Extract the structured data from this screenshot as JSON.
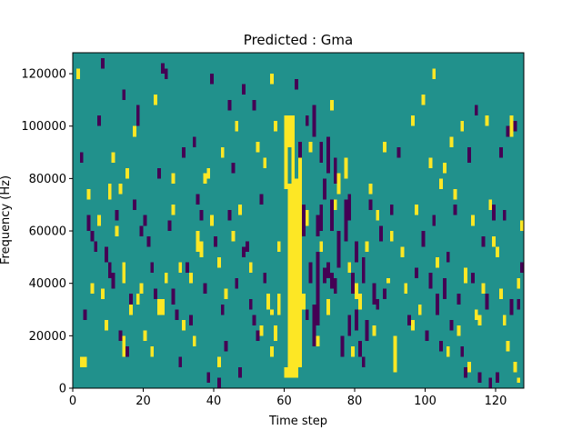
{
  "chart_data": {
    "type": "heatmap",
    "title": "Predicted : Gma",
    "xlabel": "Time step",
    "ylabel": "Frequency (Hz)",
    "xlim": [
      0,
      128
    ],
    "ylim": [
      0,
      128000
    ],
    "x_ticks": [
      0,
      20,
      40,
      60,
      80,
      100,
      120
    ],
    "y_ticks": [
      0,
      20000,
      40000,
      60000,
      80000,
      100000,
      120000
    ],
    "n_time_steps": 128,
    "n_freq_bins": 128,
    "bin_height_hz": 1000,
    "grid": false,
    "legend": "none",
    "colors": {
      "background_value_0": "#21918c",
      "value_plus_1": "#fde725",
      "value_minus_1": "#440154"
    },
    "cells_note": "value 0 everywhere except listed runs",
    "runs_plus_1": [
      [
        60,
        4000,
        8000
      ],
      [
        61,
        4000,
        78000
      ],
      [
        62,
        4000,
        104000
      ],
      [
        63,
        4000,
        80000
      ],
      [
        64,
        8000,
        88000
      ],
      [
        65,
        30000,
        36000
      ],
      [
        66,
        62000,
        68000
      ],
      [
        60,
        76000,
        104000
      ],
      [
        61,
        92000,
        104000
      ],
      [
        57,
        18000,
        24000
      ],
      [
        58,
        28000,
        36000
      ],
      [
        58,
        52000,
        56000
      ],
      [
        2,
        8000,
        12000
      ],
      [
        3,
        8000,
        12000
      ],
      [
        14,
        12000,
        20000
      ],
      [
        14,
        40000,
        48000
      ],
      [
        9,
        22000,
        26000
      ],
      [
        8,
        34000,
        38000
      ],
      [
        19,
        36000,
        40000
      ],
      [
        22,
        12000,
        16000
      ],
      [
        24,
        28000,
        34000
      ],
      [
        25,
        28000,
        34000
      ],
      [
        28,
        66000,
        70000
      ],
      [
        35,
        52000,
        60000
      ],
      [
        36,
        50000,
        56000
      ],
      [
        41,
        46000,
        50000
      ],
      [
        42,
        88000,
        92000
      ],
      [
        41,
        8000,
        12000
      ],
      [
        47,
        66000,
        70000
      ],
      [
        55,
        30000,
        34000
      ],
      [
        56,
        28000,
        30000
      ],
      [
        56,
        12000,
        16000
      ],
      [
        55,
        32000,
        36000
      ],
      [
        57,
        98000,
        102000
      ],
      [
        56,
        116000,
        120000
      ],
      [
        70,
        52000,
        56000
      ],
      [
        72,
        28000,
        34000
      ],
      [
        75,
        74000,
        82000
      ],
      [
        77,
        80000,
        88000
      ],
      [
        80,
        34000,
        40000
      ],
      [
        81,
        30000,
        36000
      ],
      [
        85,
        20000,
        24000
      ],
      [
        86,
        64000,
        68000
      ],
      [
        89,
        40000,
        42000
      ],
      [
        91,
        6000,
        20000
      ],
      [
        93,
        50000,
        54000
      ],
      [
        96,
        22000,
        26000
      ],
      [
        97,
        66000,
        70000
      ],
      [
        99,
        108000,
        112000
      ],
      [
        102,
        118000,
        122000
      ],
      [
        104,
        76000,
        80000
      ],
      [
        108,
        72000,
        76000
      ],
      [
        111,
        40000,
        46000
      ],
      [
        112,
        6000,
        10000
      ],
      [
        114,
        26000,
        30000
      ],
      [
        115,
        24000,
        28000
      ],
      [
        118,
        68000,
        72000
      ],
      [
        122,
        24000,
        28000
      ],
      [
        123,
        14000,
        18000
      ],
      [
        124,
        96000,
        104000
      ],
      [
        125,
        6000,
        10000
      ],
      [
        126,
        2000,
        4000
      ],
      [
        127,
        60000,
        64000
      ],
      [
        5,
        36000,
        40000
      ],
      [
        4,
        72000,
        76000
      ],
      [
        7,
        62000,
        66000
      ],
      [
        11,
        86000,
        90000
      ],
      [
        12,
        58000,
        62000
      ],
      [
        13,
        74000,
        78000
      ],
      [
        15,
        80000,
        84000
      ],
      [
        16,
        28000,
        32000
      ],
      [
        17,
        96000,
        100000
      ],
      [
        23,
        108000,
        112000
      ],
      [
        28,
        78000,
        82000
      ],
      [
        30,
        44000,
        48000
      ],
      [
        33,
        40000,
        44000
      ],
      [
        37,
        78000,
        82000
      ],
      [
        38,
        80000,
        84000
      ],
      [
        43,
        34000,
        38000
      ],
      [
        46,
        98000,
        102000
      ],
      [
        52,
        90000,
        94000
      ],
      [
        54,
        84000,
        88000
      ],
      [
        67,
        90000,
        94000
      ],
      [
        74,
        68000,
        72000
      ],
      [
        78,
        44000,
        48000
      ],
      [
        83,
        52000,
        56000
      ],
      [
        88,
        90000,
        94000
      ],
      [
        96,
        100000,
        104000
      ],
      [
        101,
        84000,
        88000
      ],
      [
        105,
        82000,
        86000
      ],
      [
        110,
        98000,
        102000
      ],
      [
        113,
        62000,
        66000
      ],
      [
        117,
        100000,
        104000
      ],
      [
        119,
        54000,
        58000
      ],
      [
        121,
        34000,
        38000
      ],
      [
        1,
        118000,
        122000
      ],
      [
        10,
        72000,
        78000
      ],
      [
        18,
        32000,
        36000
      ],
      [
        20,
        18000,
        22000
      ],
      [
        26,
        40000,
        44000
      ],
      [
        31,
        22000,
        26000
      ],
      [
        34,
        16000,
        20000
      ],
      [
        39,
        62000,
        66000
      ],
      [
        45,
        56000,
        60000
      ],
      [
        50,
        44000,
        48000
      ],
      [
        53,
        20000,
        24000
      ],
      [
        69,
        16000,
        20000
      ],
      [
        73,
        106000,
        110000
      ],
      [
        79,
        12000,
        16000
      ],
      [
        84,
        74000,
        78000
      ],
      [
        90,
        56000,
        60000
      ],
      [
        94,
        36000,
        40000
      ],
      [
        98,
        28000,
        32000
      ],
      [
        103,
        46000,
        50000
      ],
      [
        106,
        12000,
        16000
      ],
      [
        107,
        92000,
        96000
      ],
      [
        109,
        20000,
        24000
      ],
      [
        116,
        36000,
        40000
      ],
      [
        120,
        50000,
        54000
      ],
      [
        126,
        38000,
        42000
      ]
    ],
    "runs_minus_1": [
      [
        67,
        40000,
        48000
      ],
      [
        68,
        16000,
        32000
      ],
      [
        69,
        24000,
        52000
      ],
      [
        70,
        60000,
        70000
      ],
      [
        71,
        40000,
        46000
      ],
      [
        72,
        82000,
        96000
      ],
      [
        73,
        60000,
        72000
      ],
      [
        74,
        78000,
        88000
      ],
      [
        75,
        46000,
        60000
      ],
      [
        76,
        12000,
        20000
      ],
      [
        77,
        56000,
        72000
      ],
      [
        78,
        64000,
        74000
      ],
      [
        79,
        36000,
        44000
      ],
      [
        80,
        22000,
        30000
      ],
      [
        81,
        12000,
        18000
      ],
      [
        82,
        40000,
        50000
      ],
      [
        83,
        18000,
        26000
      ],
      [
        84,
        68000,
        72000
      ],
      [
        85,
        32000,
        40000
      ],
      [
        66,
        100000,
        104000
      ],
      [
        68,
        96000,
        108000
      ],
      [
        69,
        58000,
        66000
      ],
      [
        70,
        86000,
        94000
      ],
      [
        71,
        72000,
        80000
      ],
      [
        65,
        58000,
        70000
      ],
      [
        66,
        26000,
        30000
      ],
      [
        72,
        42000,
        48000
      ],
      [
        73,
        38000,
        44000
      ],
      [
        74,
        36000,
        42000
      ],
      [
        78,
        20000,
        28000
      ],
      [
        80,
        48000,
        56000
      ],
      [
        82,
        8000,
        12000
      ],
      [
        86,
        30000,
        34000
      ],
      [
        87,
        56000,
        62000
      ],
      [
        88,
        34000,
        38000
      ],
      [
        90,
        66000,
        70000
      ],
      [
        92,
        88000,
        92000
      ],
      [
        95,
        24000,
        28000
      ],
      [
        97,
        42000,
        46000
      ],
      [
        99,
        54000,
        60000
      ],
      [
        100,
        18000,
        22000
      ],
      [
        101,
        38000,
        44000
      ],
      [
        102,
        62000,
        66000
      ],
      [
        103,
        28000,
        36000
      ],
      [
        104,
        14000,
        18000
      ],
      [
        105,
        34000,
        42000
      ],
      [
        106,
        48000,
        52000
      ],
      [
        107,
        22000,
        26000
      ],
      [
        108,
        66000,
        70000
      ],
      [
        109,
        32000,
        36000
      ],
      [
        110,
        12000,
        16000
      ],
      [
        111,
        4000,
        8000
      ],
      [
        112,
        86000,
        92000
      ],
      [
        113,
        40000,
        44000
      ],
      [
        114,
        104000,
        108000
      ],
      [
        115,
        2000,
        6000
      ],
      [
        116,
        54000,
        58000
      ],
      [
        117,
        30000,
        36000
      ],
      [
        118,
        0,
        4000
      ],
      [
        119,
        64000,
        70000
      ],
      [
        120,
        2000,
        6000
      ],
      [
        121,
        88000,
        92000
      ],
      [
        122,
        64000,
        68000
      ],
      [
        123,
        96000,
        100000
      ],
      [
        124,
        28000,
        34000
      ],
      [
        125,
        98000,
        102000
      ],
      [
        126,
        30000,
        34000
      ],
      [
        127,
        44000,
        48000
      ],
      [
        4,
        60000,
        66000
      ],
      [
        5,
        56000,
        60000
      ],
      [
        6,
        52000,
        56000
      ],
      [
        9,
        48000,
        54000
      ],
      [
        10,
        42000,
        48000
      ],
      [
        11,
        38000,
        44000
      ],
      [
        12,
        64000,
        68000
      ],
      [
        13,
        18000,
        22000
      ],
      [
        15,
        12000,
        16000
      ],
      [
        16,
        30000,
        36000
      ],
      [
        18,
        100000,
        108000
      ],
      [
        19,
        58000,
        62000
      ],
      [
        20,
        62000,
        66000
      ],
      [
        21,
        54000,
        58000
      ],
      [
        22,
        44000,
        48000
      ],
      [
        24,
        80000,
        84000
      ],
      [
        26,
        118000,
        122000
      ],
      [
        27,
        60000,
        64000
      ],
      [
        28,
        32000,
        38000
      ],
      [
        29,
        26000,
        30000
      ],
      [
        31,
        88000,
        92000
      ],
      [
        32,
        44000,
        48000
      ],
      [
        33,
        24000,
        28000
      ],
      [
        35,
        70000,
        74000
      ],
      [
        36,
        64000,
        68000
      ],
      [
        37,
        36000,
        40000
      ],
      [
        38,
        2000,
        6000
      ],
      [
        39,
        116000,
        120000
      ],
      [
        40,
        54000,
        58000
      ],
      [
        42,
        28000,
        32000
      ],
      [
        43,
        14000,
        18000
      ],
      [
        44,
        106000,
        110000
      ],
      [
        45,
        82000,
        86000
      ],
      [
        46,
        38000,
        42000
      ],
      [
        47,
        4000,
        8000
      ],
      [
        48,
        112000,
        116000
      ],
      [
        49,
        52000,
        56000
      ],
      [
        50,
        30000,
        34000
      ],
      [
        51,
        24000,
        28000
      ],
      [
        52,
        18000,
        22000
      ],
      [
        53,
        70000,
        74000
      ],
      [
        54,
        40000,
        44000
      ],
      [
        2,
        86000,
        90000
      ],
      [
        3,
        26000,
        30000
      ],
      [
        7,
        100000,
        104000
      ],
      [
        8,
        122000,
        126000
      ],
      [
        14,
        110000,
        114000
      ],
      [
        17,
        68000,
        72000
      ],
      [
        23,
        34000,
        38000
      ],
      [
        25,
        120000,
        124000
      ],
      [
        30,
        8000,
        12000
      ],
      [
        34,
        92000,
        96000
      ],
      [
        41,
        0,
        4000
      ],
      [
        44,
        64000,
        68000
      ],
      [
        48,
        50000,
        54000
      ],
      [
        51,
        106000,
        110000
      ],
      [
        63,
        114000,
        118000
      ],
      [
        64,
        88000,
        94000
      ]
    ]
  }
}
